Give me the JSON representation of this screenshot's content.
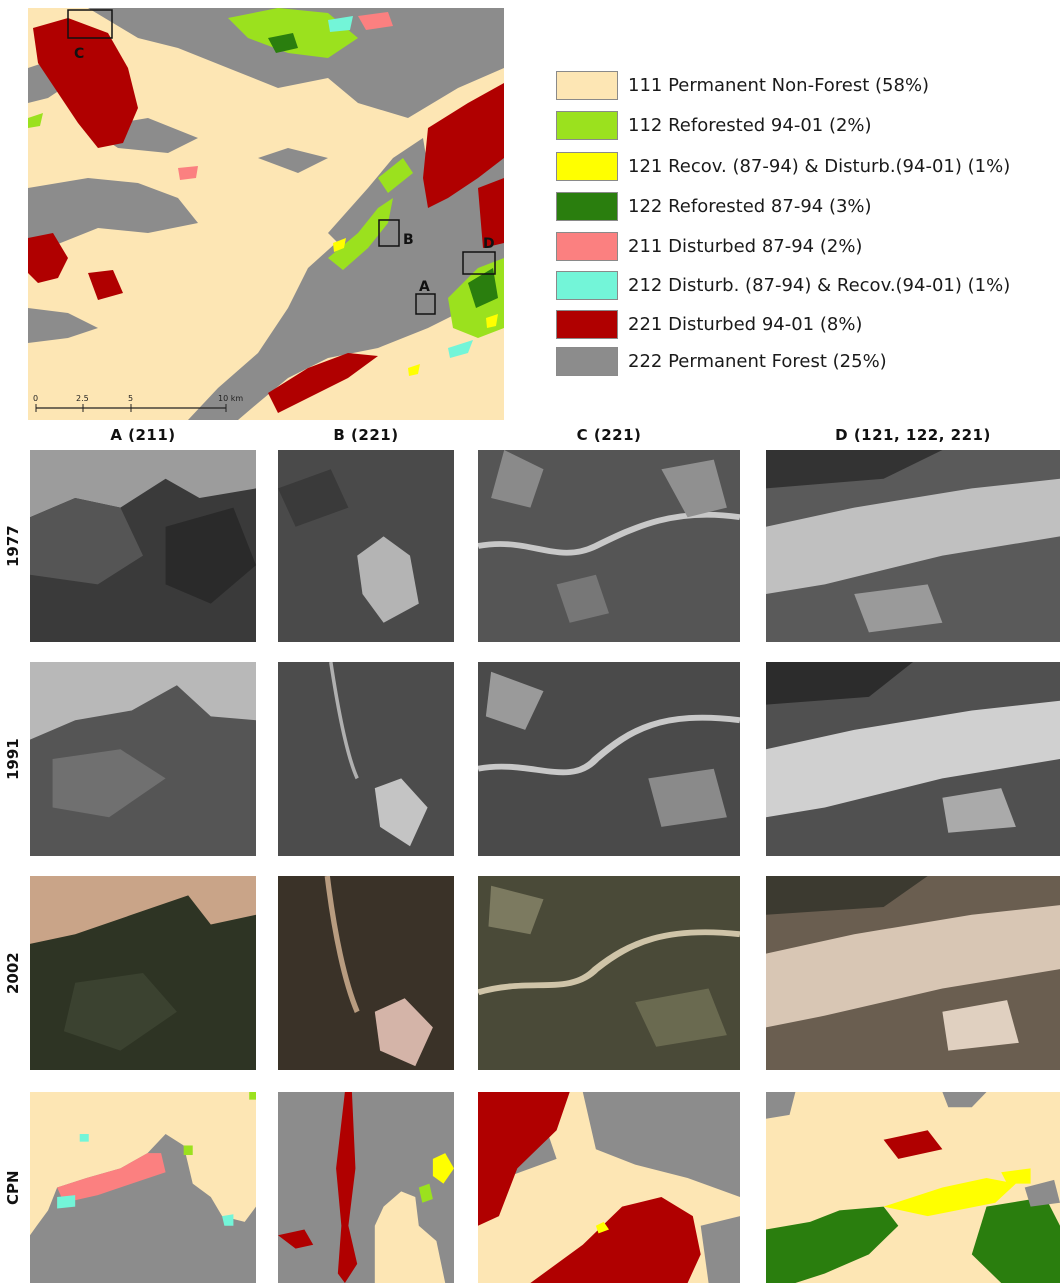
{
  "colors": {
    "111": "#fde6b4",
    "112": "#9be11e",
    "121": "#ffff00",
    "122": "#2a7e0e",
    "211": "#fb8080",
    "212": "#73f5d8",
    "221": "#b00000",
    "222": "#8c8c8c"
  },
  "legend": [
    {
      "code": "111",
      "label": "111 Permanent Non-Forest (58%)"
    },
    {
      "code": "112",
      "label": "112 Reforested 94-01 (2%)"
    },
    {
      "code": "121",
      "label": "121 Recov. (87-94) & Disturb.(94-01) (1%)"
    },
    {
      "code": "122",
      "label": "122 Reforested 87-94 (3%)"
    },
    {
      "code": "211",
      "label": "211 Disturbed 87-94 (2%)"
    },
    {
      "code": "212",
      "label": "212 Disturb. (87-94) & Recov.(94-01) (1%)"
    },
    {
      "code": "221",
      "label": "221 Disturbed 94-01 (8%)"
    },
    {
      "code": "222",
      "label": "222 Permanent Forest (25%)"
    }
  ],
  "overview_map": {
    "site_markers": [
      "A",
      "B",
      "C",
      "D"
    ],
    "scale_ticks": [
      "0",
      "2.5",
      "5",
      "10 km"
    ]
  },
  "columns": [
    "A (211)",
    "B (221)",
    "C (221)",
    "D (121, 122, 221)"
  ],
  "rows": [
    "1977",
    "1991",
    "2002",
    "CPN"
  ]
}
